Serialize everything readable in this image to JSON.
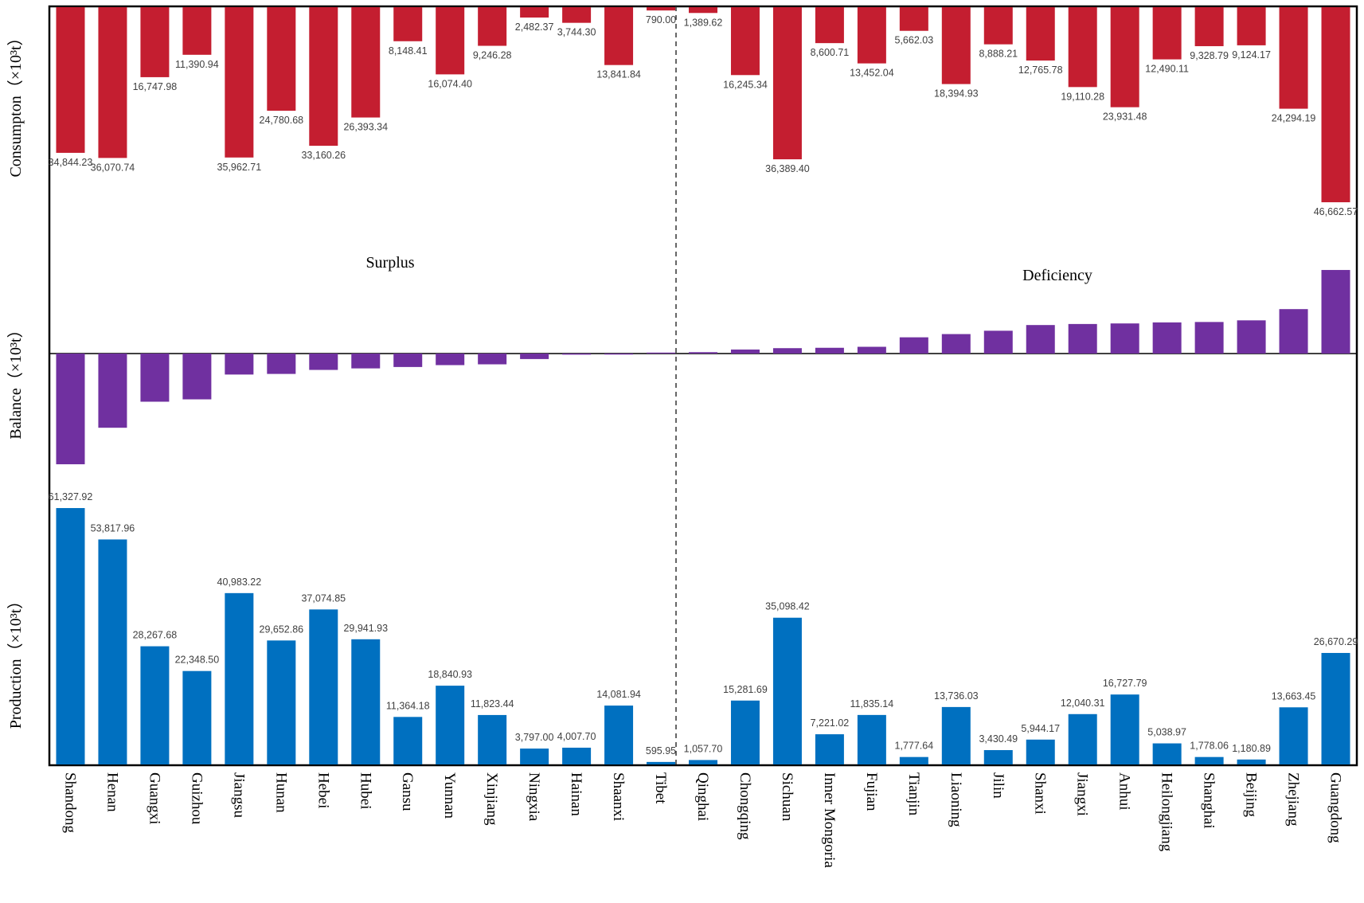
{
  "chart_data": {
    "type": "bar",
    "title": "",
    "ylabels": {
      "consumption": "Consumpton（×10³t）",
      "balance": "Balance（×10³t）",
      "production": "Production（×10³t）"
    },
    "annotations": {
      "surplus": "Surplus",
      "deficiency": "Deficiency"
    },
    "categories": [
      "Shandong",
      "Henan",
      "Guangxi",
      "Guizhou",
      "Jiangsu",
      "Hunan",
      "Hebei",
      "Hubei",
      "Gansu",
      "Yunnan",
      "Xinjiang",
      "Ningxia",
      "Hainan",
      "Shaanxi",
      "Tibet",
      "Qinghai",
      "Chongqing",
      "Sichuan",
      "Inner Mongoria",
      "Fujian",
      "Tianjin",
      "Liaoning",
      "Jilin",
      "Shanxi",
      "Jiangxi",
      "Anhui",
      "Heilongjiang",
      "Shanghai",
      "Beijing",
      "Zhejiang",
      "Guangdong"
    ],
    "series": [
      {
        "name": "Consumption",
        "color": "#c41e30",
        "values": [
          34844.23,
          36070.74,
          16747.98,
          11390.94,
          35962.71,
          24780.68,
          33160.26,
          26393.34,
          8148.41,
          16074.4,
          9246.28,
          2482.37,
          3744.3,
          13841.84,
          790.0,
          1389.62,
          16245.34,
          36389.4,
          8600.71,
          13452.04,
          5662.03,
          18394.93,
          8888.21,
          12765.78,
          19110.28,
          23931.48,
          12490.11,
          9328.79,
          9124.17,
          24294.19,
          46662.57
        ],
        "labels": [
          "34,844.23",
          "36,070.74",
          "16,747.98",
          "11,390.94",
          "35,962.71",
          "24,780.68",
          "33,160.26",
          "26,393.34",
          "8,148.41",
          "16,074.40",
          "9,246.28",
          "2,482.37",
          "3,744.30",
          "13,841.84",
          "790.00",
          "1,389.62",
          "16,245.34",
          "36,389.40",
          "8,600.71",
          "13,452.04",
          "5,662.03",
          "18,394.93",
          "8,888.21",
          "12,765.78",
          "19,110.28",
          "23,931.48",
          "12,490.11",
          "9,328.79",
          "9,124.17",
          "24,294.19",
          "46,662.57"
        ]
      },
      {
        "name": "Production",
        "color": "#0070c0",
        "values": [
          61327.92,
          53817.96,
          28267.68,
          22348.5,
          40983.22,
          29652.86,
          37074.85,
          29941.93,
          11364.18,
          18840.93,
          11823.44,
          3797.0,
          4007.7,
          14081.94,
          595.95,
          1057.7,
          15281.69,
          35098.42,
          7221.02,
          11835.14,
          1777.64,
          13736.03,
          3430.49,
          5944.17,
          12040.31,
          16727.79,
          5038.97,
          1778.06,
          1180.89,
          13663.45,
          26670.29
        ],
        "labels": [
          "61,327.92",
          "53,817.96",
          "28,267.68",
          "22,348.50",
          "40,983.22",
          "29,652.86",
          "37,074.85",
          "29,941.93",
          "11,364.18",
          "18,840.93",
          "11,823.44",
          "3,797.00",
          "4,007.70",
          "14,081.94",
          "595.95",
          "1,057.70",
          "15,281.69",
          "35,098.42",
          "7,221.02",
          "11,835.14",
          "1,777.64",
          "13,736.03",
          "3,430.49",
          "5,944.17",
          "12,040.31",
          "16,727.79",
          "5,038.97",
          "1,778.06",
          "1,180.89",
          "13,663.45",
          "26,670.29"
        ]
      },
      {
        "name": "Balance (Consumption − Production)",
        "color": "#7030a0"
      }
    ]
  }
}
